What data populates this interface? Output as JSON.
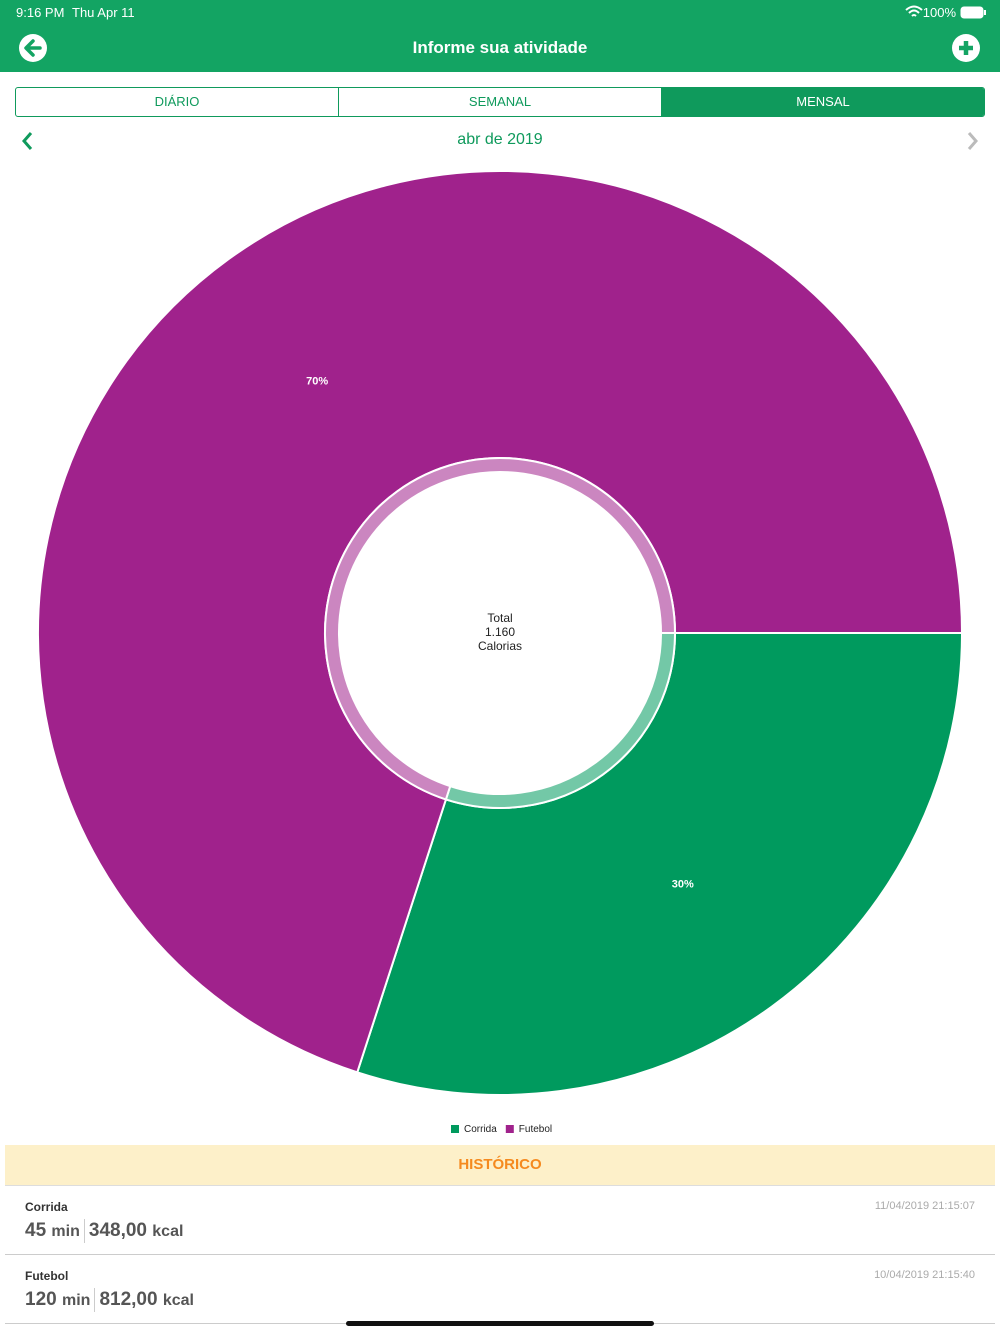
{
  "status_bar": {
    "time": "9:16 PM",
    "date": "Thu Apr 11",
    "battery": "100%"
  },
  "header": {
    "title": "Informe sua atividade"
  },
  "tabs": [
    "DIÁRIO",
    "SEMANAL",
    "MENSAL"
  ],
  "period": "abr de 2019",
  "chart_data": {
    "type": "pie",
    "categories": [
      "Corrida",
      "Futebol"
    ],
    "values": [
      30,
      70
    ],
    "value_labels": [
      "30%",
      "70%"
    ],
    "colors": [
      "#009a5e",
      "#a0228c"
    ],
    "center_label": [
      "Total",
      "1.160",
      "Calorias"
    ]
  },
  "history": {
    "title": "HISTÓRICO",
    "items": [
      {
        "name": "Corrida",
        "duration": "45",
        "duration_unit": "min",
        "energy": "348,00",
        "energy_unit": "kcal",
        "timestamp": "11/04/2019 21:15:07"
      },
      {
        "name": "Futebol",
        "duration": "120",
        "duration_unit": "min",
        "energy": "812,00",
        "energy_unit": "kcal",
        "timestamp": "10/04/2019 21:15:40"
      }
    ]
  }
}
